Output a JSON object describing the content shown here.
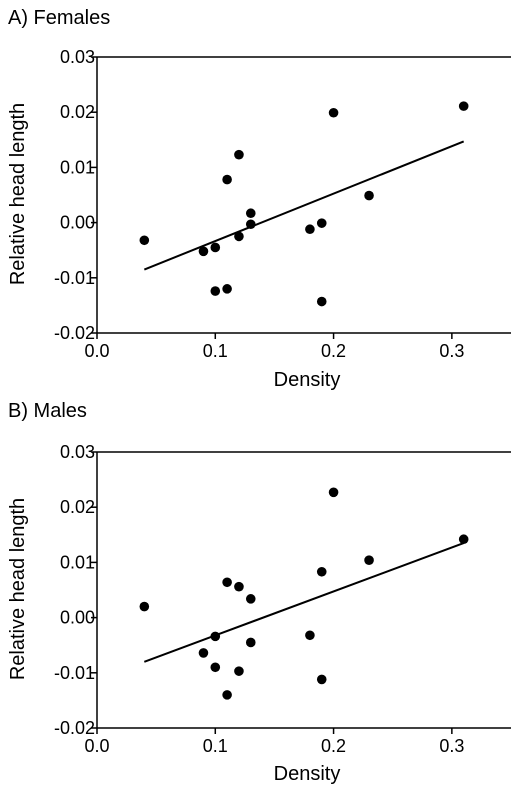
{
  "chart_data": [
    {
      "type": "scatter",
      "title": "A) Females",
      "xlabel": "Density",
      "ylabel": "Relative head length",
      "xlim": [
        0.0,
        0.35
      ],
      "ylim": [
        -0.02,
        0.03
      ],
      "xticks": [
        0.0,
        0.1,
        0.2,
        0.3
      ],
      "xtick_labels": [
        "0.0",
        "0.1",
        "0.2",
        "0.3"
      ],
      "yticks": [
        -0.02,
        -0.01,
        0.0,
        0.01,
        0.02,
        0.03
      ],
      "ytick_labels": [
        "-0.02",
        "-0.01",
        "0.00",
        "0.01",
        "0.02",
        "0.03"
      ],
      "grid": false,
      "points": [
        {
          "x": 0.04,
          "y": -0.0032
        },
        {
          "x": 0.09,
          "y": -0.0052
        },
        {
          "x": 0.1,
          "y": -0.0045
        },
        {
          "x": 0.1,
          "y": -0.0124
        },
        {
          "x": 0.11,
          "y": 0.0078
        },
        {
          "x": 0.11,
          "y": -0.012
        },
        {
          "x": 0.12,
          "y": 0.0123
        },
        {
          "x": 0.12,
          "y": -0.0025
        },
        {
          "x": 0.13,
          "y": 0.0017
        },
        {
          "x": 0.13,
          "y": -0.0003
        },
        {
          "x": 0.18,
          "y": -0.0012
        },
        {
          "x": 0.19,
          "y": -0.0001
        },
        {
          "x": 0.19,
          "y": -0.0143
        },
        {
          "x": 0.2,
          "y": 0.0199
        },
        {
          "x": 0.23,
          "y": 0.0049
        },
        {
          "x": 0.31,
          "y": 0.0211
        }
      ],
      "trend_line": {
        "x": [
          0.04,
          0.31
        ],
        "y": [
          -0.0085,
          0.0147
        ]
      }
    },
    {
      "type": "scatter",
      "title": "B) Males",
      "xlabel": "Density",
      "ylabel": "Relative head length",
      "xlim": [
        0.0,
        0.35
      ],
      "ylim": [
        -0.02,
        0.03
      ],
      "xticks": [
        0.0,
        0.1,
        0.2,
        0.3
      ],
      "xtick_labels": [
        "0.0",
        "0.1",
        "0.2",
        "0.3"
      ],
      "yticks": [
        -0.02,
        -0.01,
        0.0,
        0.01,
        0.02,
        0.03
      ],
      "ytick_labels": [
        "-0.02",
        "-0.01",
        "0.00",
        "0.01",
        "0.02",
        "0.03"
      ],
      "grid": false,
      "points": [
        {
          "x": 0.04,
          "y": 0.002
        },
        {
          "x": 0.09,
          "y": -0.0064
        },
        {
          "x": 0.1,
          "y": -0.0034
        },
        {
          "x": 0.1,
          "y": -0.009
        },
        {
          "x": 0.11,
          "y": 0.0064
        },
        {
          "x": 0.11,
          "y": -0.014
        },
        {
          "x": 0.12,
          "y": 0.0056
        },
        {
          "x": 0.12,
          "y": -0.0097
        },
        {
          "x": 0.13,
          "y": 0.0034
        },
        {
          "x": 0.13,
          "y": -0.0045
        },
        {
          "x": 0.18,
          "y": -0.0032
        },
        {
          "x": 0.19,
          "y": 0.0083
        },
        {
          "x": 0.19,
          "y": -0.0112
        },
        {
          "x": 0.2,
          "y": 0.0227
        },
        {
          "x": 0.23,
          "y": 0.0104
        },
        {
          "x": 0.31,
          "y": 0.0142
        }
      ],
      "trend_line": {
        "x": [
          0.04,
          0.31
        ],
        "y": [
          -0.008,
          0.0135
        ]
      }
    }
  ]
}
